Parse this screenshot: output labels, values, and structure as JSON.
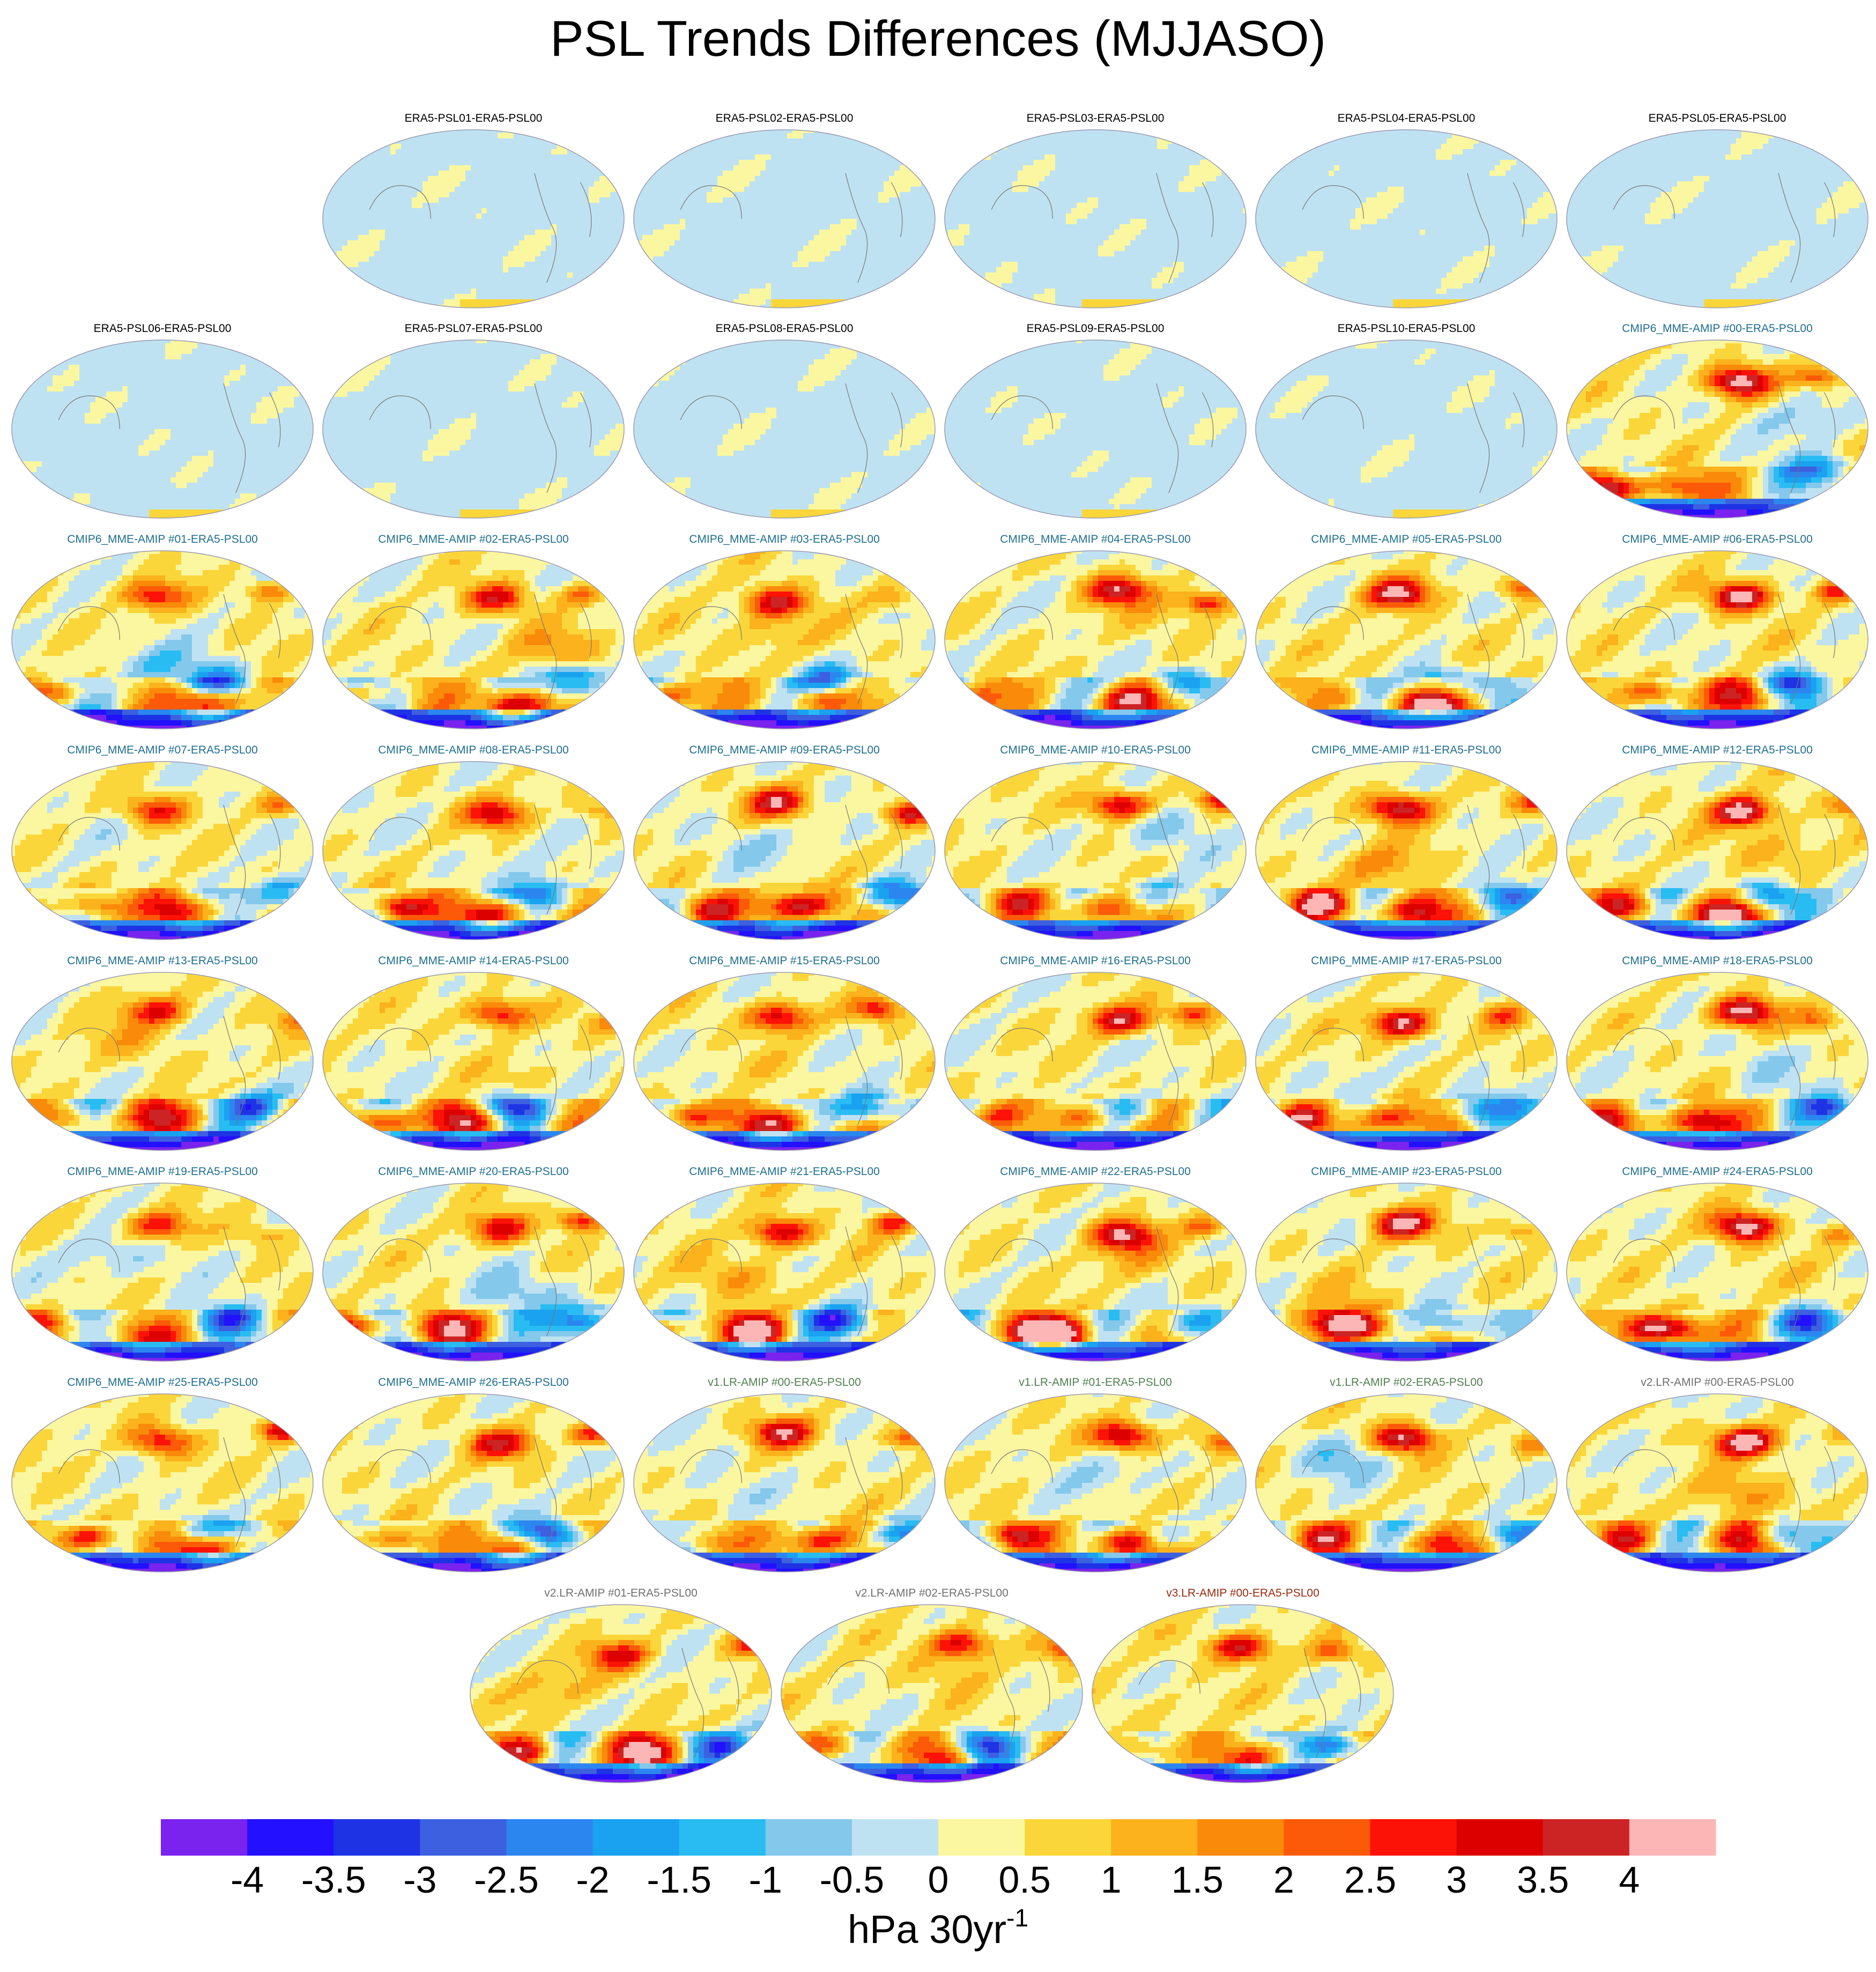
{
  "title": "PSL Trends Differences (MJJASO)",
  "colorbar": {
    "colors": [
      "#7a22ee",
      "#2210ff",
      "#1e33e4",
      "#3c60e0",
      "#2b86f0",
      "#1aa2f0",
      "#28bcf2",
      "#84c8ec",
      "#bfe2f2",
      "#fbf6a0",
      "#fbd63a",
      "#fbb21c",
      "#fa8a0a",
      "#fc5a08",
      "#fc1206",
      "#dc0000",
      "#cc2424",
      "#fdb6b6"
    ],
    "labels": [
      "-4",
      "-3.5",
      "-3",
      "-2.5",
      "-2",
      "-1.5",
      "-1",
      "-0.5",
      "0",
      "0.5",
      "1",
      "1.5",
      "2",
      "2.5",
      "3",
      "3.5",
      "4"
    ],
    "unit_main": "hPa 30yr",
    "unit_sup": "-1"
  },
  "panels": [
    {
      "label": "ERA5-PSL01-ERA5-PSL00",
      "group": "era5"
    },
    {
      "label": "ERA5-PSL02-ERA5-PSL00",
      "group": "era5"
    },
    {
      "label": "ERA5-PSL03-ERA5-PSL00",
      "group": "era5"
    },
    {
      "label": "ERA5-PSL04-ERA5-PSL00",
      "group": "era5"
    },
    {
      "label": "ERA5-PSL05-ERA5-PSL00",
      "group": "era5"
    },
    {
      "label": "ERA5-PSL06-ERA5-PSL00",
      "group": "era5"
    },
    {
      "label": "ERA5-PSL07-ERA5-PSL00",
      "group": "era5"
    },
    {
      "label": "ERA5-PSL08-ERA5-PSL00",
      "group": "era5"
    },
    {
      "label": "ERA5-PSL09-ERA5-PSL00",
      "group": "era5"
    },
    {
      "label": "ERA5-PSL10-ERA5-PSL00",
      "group": "era5"
    },
    {
      "label": "CMIP6_MME-AMIP  #00-ERA5-PSL00",
      "group": "cmip6"
    },
    {
      "label": "CMIP6_MME-AMIP  #01-ERA5-PSL00",
      "group": "cmip6"
    },
    {
      "label": "CMIP6_MME-AMIP  #02-ERA5-PSL00",
      "group": "cmip6"
    },
    {
      "label": "CMIP6_MME-AMIP  #03-ERA5-PSL00",
      "group": "cmip6"
    },
    {
      "label": "CMIP6_MME-AMIP  #04-ERA5-PSL00",
      "group": "cmip6"
    },
    {
      "label": "CMIP6_MME-AMIP  #05-ERA5-PSL00",
      "group": "cmip6"
    },
    {
      "label": "CMIP6_MME-AMIP  #06-ERA5-PSL00",
      "group": "cmip6"
    },
    {
      "label": "CMIP6_MME-AMIP  #07-ERA5-PSL00",
      "group": "cmip6"
    },
    {
      "label": "CMIP6_MME-AMIP  #08-ERA5-PSL00",
      "group": "cmip6"
    },
    {
      "label": "CMIP6_MME-AMIP  #09-ERA5-PSL00",
      "group": "cmip6"
    },
    {
      "label": "CMIP6_MME-AMIP  #10-ERA5-PSL00",
      "group": "cmip6"
    },
    {
      "label": "CMIP6_MME-AMIP  #11-ERA5-PSL00",
      "group": "cmip6"
    },
    {
      "label": "CMIP6_MME-AMIP  #12-ERA5-PSL00",
      "group": "cmip6"
    },
    {
      "label": "CMIP6_MME-AMIP  #13-ERA5-PSL00",
      "group": "cmip6"
    },
    {
      "label": "CMIP6_MME-AMIP  #14-ERA5-PSL00",
      "group": "cmip6"
    },
    {
      "label": "CMIP6_MME-AMIP  #15-ERA5-PSL00",
      "group": "cmip6"
    },
    {
      "label": "CMIP6_MME-AMIP  #16-ERA5-PSL00",
      "group": "cmip6"
    },
    {
      "label": "CMIP6_MME-AMIP  #17-ERA5-PSL00",
      "group": "cmip6"
    },
    {
      "label": "CMIP6_MME-AMIP  #18-ERA5-PSL00",
      "group": "cmip6"
    },
    {
      "label": "CMIP6_MME-AMIP  #19-ERA5-PSL00",
      "group": "cmip6"
    },
    {
      "label": "CMIP6_MME-AMIP  #20-ERA5-PSL00",
      "group": "cmip6"
    },
    {
      "label": "CMIP6_MME-AMIP  #21-ERA5-PSL00",
      "group": "cmip6"
    },
    {
      "label": "CMIP6_MME-AMIP  #22-ERA5-PSL00",
      "group": "cmip6"
    },
    {
      "label": "CMIP6_MME-AMIP  #23-ERA5-PSL00",
      "group": "cmip6"
    },
    {
      "label": "CMIP6_MME-AMIP  #24-ERA5-PSL00",
      "group": "cmip6"
    },
    {
      "label": "CMIP6_MME-AMIP  #25-ERA5-PSL00",
      "group": "cmip6"
    },
    {
      "label": "CMIP6_MME-AMIP  #26-ERA5-PSL00",
      "group": "cmip6"
    },
    {
      "label": "v1.LR-AMIP  #00-ERA5-PSL00",
      "group": "v1"
    },
    {
      "label": "v1.LR-AMIP  #01-ERA5-PSL00",
      "group": "v1"
    },
    {
      "label": "v1.LR-AMIP  #02-ERA5-PSL00",
      "group": "v1"
    },
    {
      "label": "v2.LR-AMIP  #00-ERA5-PSL00",
      "group": "v2"
    },
    {
      "label": "v2.LR-AMIP  #01-ERA5-PSL00",
      "group": "v2"
    },
    {
      "label": "v2.LR-AMIP  #02-ERA5-PSL00",
      "group": "v2"
    },
    {
      "label": "v3.LR-AMIP  #00-ERA5-PSL00",
      "group": "v3"
    }
  ],
  "group_colors": {
    "era5": "#000000",
    "cmip6": "#1f6f8f",
    "v1": "#4f8050",
    "v2": "#707070",
    "v3": "#9a2a10"
  },
  "chart_data": {
    "type": "heatmap",
    "title": "PSL Trends Differences (MJJASO)",
    "projection": "global map (Robinson-like ellipse), Pacific-centered",
    "color_levels": [
      -4,
      -3.5,
      -3,
      -2.5,
      -2,
      -1.5,
      -1,
      -0.5,
      0,
      0.5,
      1,
      1.5,
      2,
      2.5,
      3,
      3.5,
      4
    ],
    "units": "hPa 30yr-1",
    "n_panels": 44,
    "notes": "ERA5 ensemble member panels (01-10) show weak differences mostly in the -0.5 to 0.5 range; model panels show strong positive anomalies over the North Pacific/Arctic and Southern Ocean with negative values over Antarctica."
  }
}
